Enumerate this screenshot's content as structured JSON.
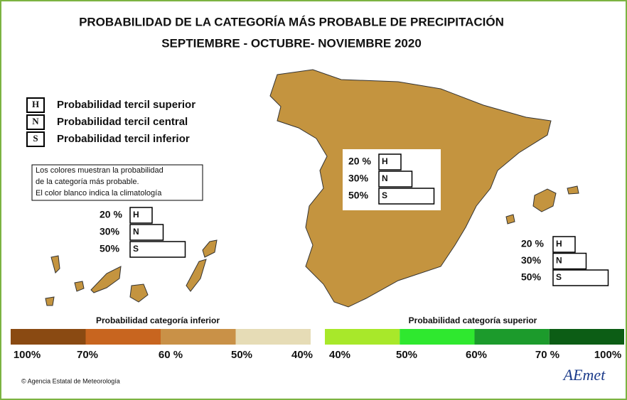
{
  "header": {
    "title": "PROBABILIDAD DE LA CATEGORÍA MÁS PROBABLE DE PRECIPITACIÓN",
    "subtitle": "SEPTIEMBRE - OCTUBRE- NOVIEMBRE 2020"
  },
  "legend": [
    {
      "letter": "H",
      "label": "Probabilidad  tercil superior"
    },
    {
      "letter": "N",
      "label": "Probabilidad  tercil central"
    },
    {
      "letter": "S",
      "label": "Probabilidad  tercil inferior"
    }
  ],
  "note": [
    "Los colores muestran la probabilidad",
    "de la categoría más probable.",
    "El color blanco indica la climatología"
  ],
  "map": {
    "color": "#c4943f"
  },
  "regions": [
    {
      "rows": [
        {
          "value": 20,
          "label": "20 %",
          "letter": "H"
        },
        {
          "value": 30,
          "label": "30%",
          "letter": "N"
        },
        {
          "value": 50,
          "label": "50%",
          "letter": "S"
        }
      ]
    },
    {
      "rows": [
        {
          "value": 20,
          "label": "20 %",
          "letter": "H"
        },
        {
          "value": 30,
          "label": "30%",
          "letter": "N"
        },
        {
          "value": 50,
          "label": "50%",
          "letter": "S"
        }
      ]
    },
    {
      "rows": [
        {
          "value": 20,
          "label": "20 %",
          "letter": "H"
        },
        {
          "value": 30,
          "label": "30%",
          "letter": "N"
        },
        {
          "value": 50,
          "label": "50%",
          "letter": "S"
        }
      ]
    }
  ],
  "scales": [
    {
      "title": "Probabilidad categoría inferior",
      "colors": [
        "#8a4a12",
        "#c8651f",
        "#c99147",
        "#e6dcb6"
      ],
      "ticks": [
        {
          "value": 100,
          "label": "100%"
        },
        {
          "value": 70,
          "label": "70%"
        },
        {
          "value": 60,
          "label": "60 %"
        },
        {
          "value": 50,
          "label": "50%"
        },
        {
          "value": 40,
          "label": "40%"
        }
      ]
    },
    {
      "title": "Probabilidad categoría superior",
      "colors": [
        "#a8e82a",
        "#2fe82f",
        "#1c9b2c",
        "#0c5d15"
      ],
      "ticks": [
        {
          "value": 40,
          "label": "40%"
        },
        {
          "value": 50,
          "label": "50%"
        },
        {
          "value": 60,
          "label": "60%"
        },
        {
          "value": 70,
          "label": "70 %"
        },
        {
          "value": 100,
          "label": "100%"
        }
      ]
    }
  ],
  "footer": {
    "credit": "© Agencia Estatal de Meteorología",
    "logo": "AEmet"
  }
}
